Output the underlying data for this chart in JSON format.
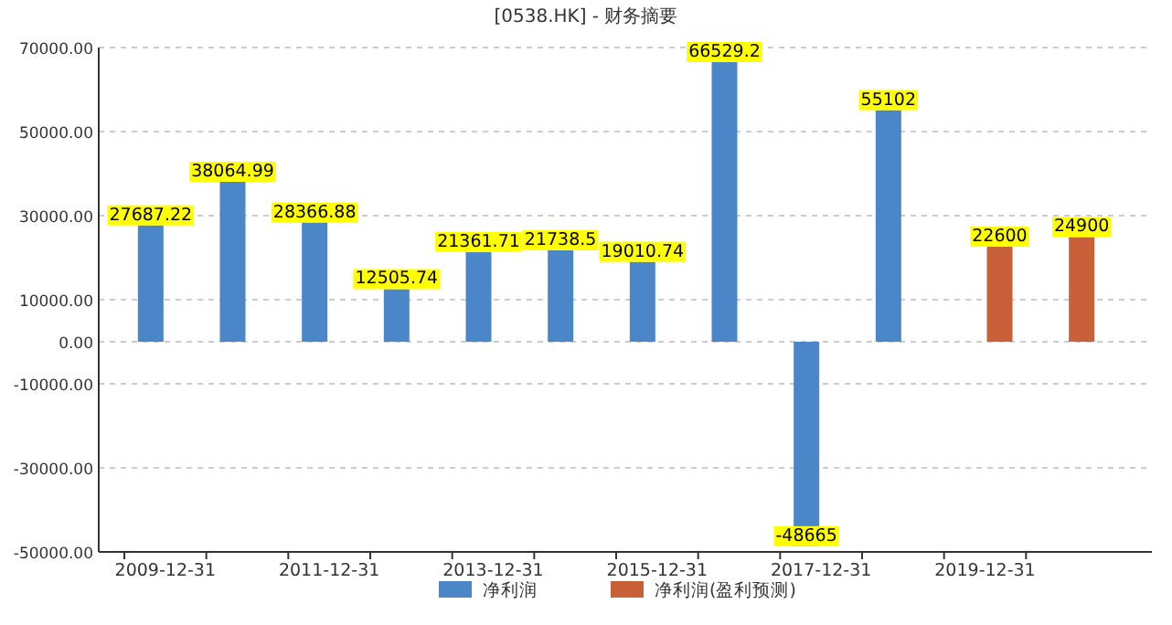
{
  "chart_data": {
    "type": "bar",
    "title": "[0538.HK] - 财务摘要",
    "categories": [
      "2009-12-31",
      null,
      "2011-12-31",
      null,
      "2013-12-31",
      null,
      "2015-12-31",
      null,
      "2017-12-31",
      null,
      "2019-12-31",
      null
    ],
    "series": [
      {
        "name": "净利润",
        "color": "#4a86c8",
        "values": [
          27687.22,
          38064.99,
          28366.88,
          12505.74,
          21361.71,
          21738.5,
          19010.74,
          66529.2,
          -48665,
          55102,
          null,
          null
        ]
      },
      {
        "name": "净利润(盈利预测)",
        "color": "#c8603a",
        "values": [
          null,
          null,
          null,
          null,
          null,
          null,
          null,
          null,
          null,
          null,
          22600,
          24900
        ]
      }
    ],
    "ylim": [
      -50000,
      70000
    ],
    "yticks": [
      {
        "value": 70000,
        "label": "70000.00"
      },
      {
        "value": 50000,
        "label": "50000.00"
      },
      {
        "value": 30000,
        "label": "30000.00"
      },
      {
        "value": 10000,
        "label": "10000.00"
      },
      {
        "value": 0,
        "label": "0.00"
      },
      {
        "value": -10000,
        "label": "-10000.00"
      },
      {
        "value": -30000,
        "label": "-30000.00"
      },
      {
        "value": -50000,
        "label": "-50000.00"
      }
    ],
    "grid": "y",
    "data_labels": true,
    "legend": "bottom"
  }
}
